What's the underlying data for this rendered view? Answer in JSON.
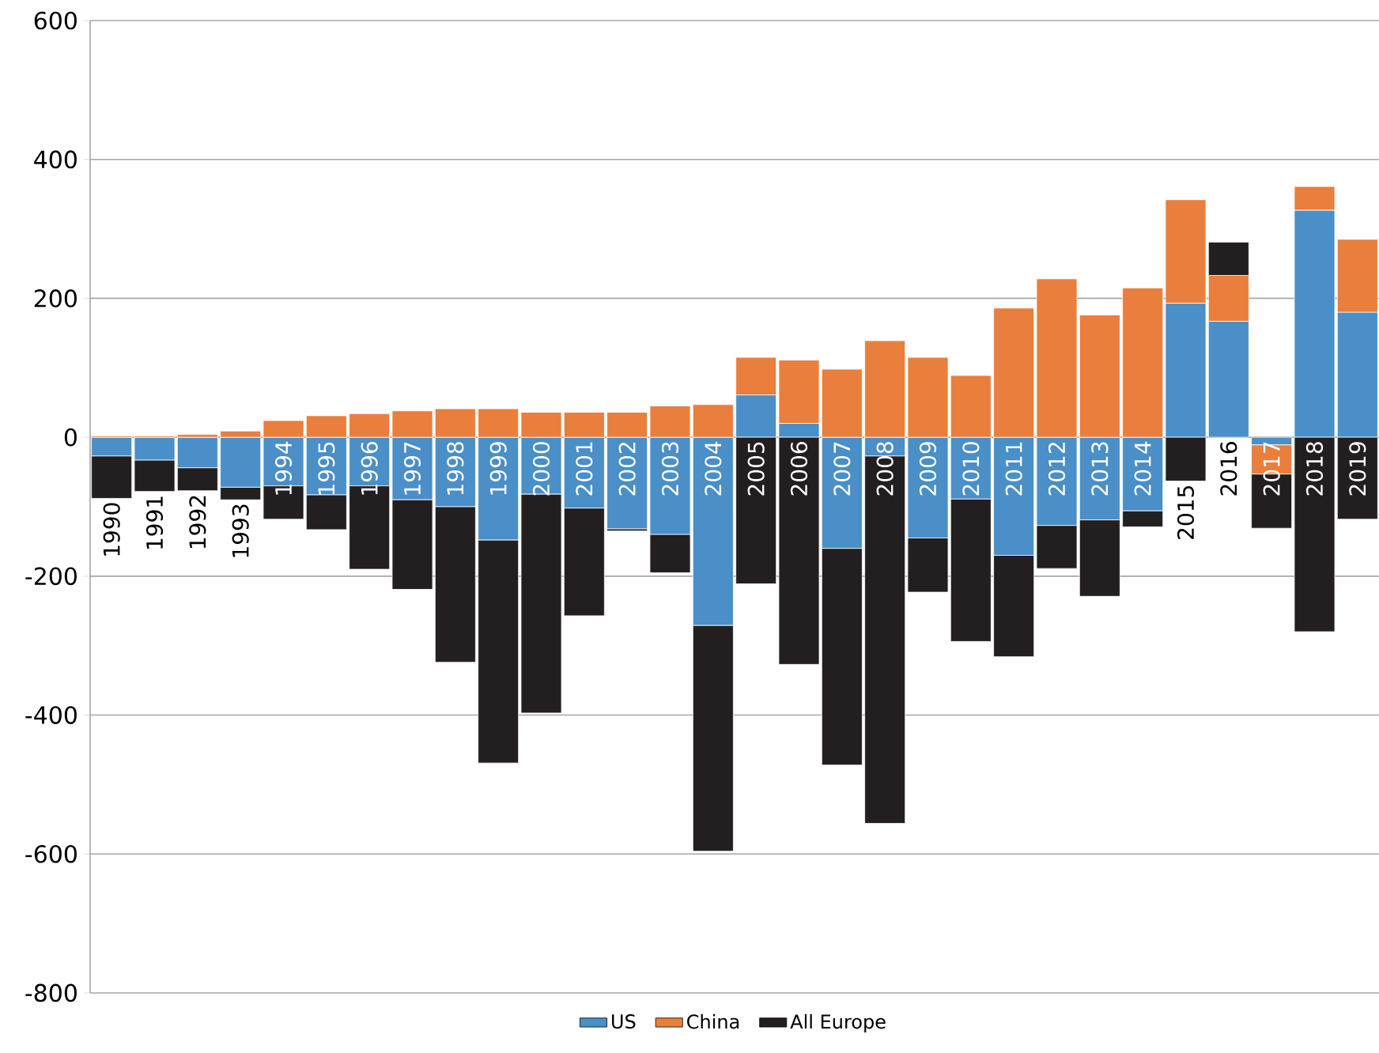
{
  "chart_data": {
    "type": "bar",
    "stacked": true,
    "categories": [
      "1990",
      "1991",
      "1992",
      "1993",
      "1994",
      "1995",
      "1996",
      "1997",
      "1998",
      "1999",
      "2000",
      "2001",
      "2002",
      "2003",
      "2004",
      "2005",
      "2006",
      "2007",
      "2008",
      "2009",
      "2010",
      "2011",
      "2012",
      "2013",
      "2014",
      "2015",
      "2016",
      "2017",
      "2018",
      "2019"
    ],
    "series": [
      {
        "name": "US",
        "color": "#4a8fc7",
        "values": [
          -27,
          -33,
          -44,
          -72,
          -70,
          -83,
          -70,
          -90,
          -100,
          -148,
          -82,
          -102,
          -132,
          -140,
          -271,
          61,
          20,
          -160,
          -27,
          -145,
          -89,
          -170,
          -127,
          -119,
          -106,
          193,
          167,
          -11,
          327,
          180
        ]
      },
      {
        "name": "China",
        "color": "#ea7e3c",
        "values": [
          2,
          2,
          4,
          9,
          24,
          31,
          34,
          38,
          41,
          41,
          36,
          36,
          36,
          45,
          47,
          54,
          91,
          98,
          139,
          115,
          89,
          186,
          228,
          176,
          215,
          149,
          66,
          -42,
          34,
          105
        ]
      },
      {
        "name": "All Europe",
        "color": "#231f20",
        "values": [
          -61,
          -45,
          -33,
          -18,
          -48,
          -50,
          -120,
          -129,
          -224,
          -321,
          -315,
          -155,
          -3,
          -55,
          -325,
          -211,
          -327,
          -312,
          -529,
          -78,
          -205,
          -146,
          -62,
          -110,
          -23,
          -63,
          48,
          -78,
          -280,
          -118
        ]
      }
    ],
    "ylim": [
      -800,
      600
    ],
    "yticks": [
      -800,
      -600,
      -400,
      -200,
      0,
      200,
      400,
      600
    ],
    "grid": "y",
    "legend": "bottom"
  }
}
